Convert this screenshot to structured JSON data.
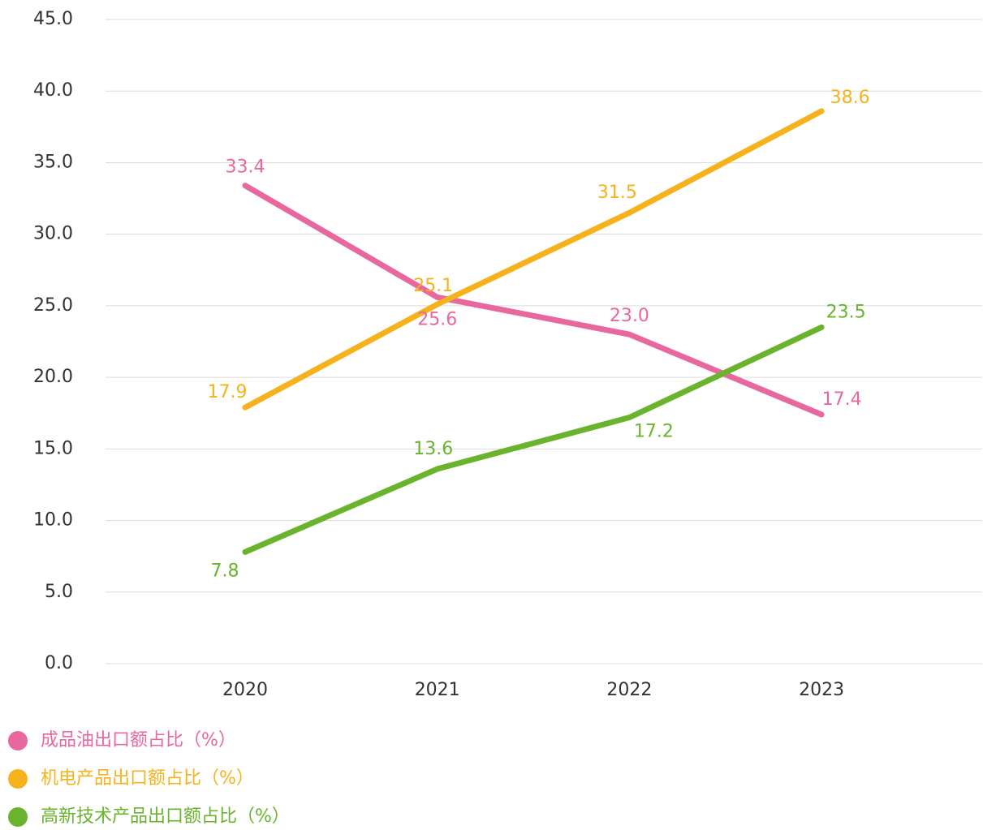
{
  "chart_data": {
    "type": "line",
    "categories": [
      "2020",
      "2021",
      "2022",
      "2023"
    ],
    "series": [
      {
        "name": "成品油出口额占比（%）",
        "color": "#e8679f",
        "values": [
          33.4,
          25.6,
          23.0,
          17.4
        ],
        "value_labels": [
          "33.4",
          "25.6",
          "23.0",
          "17.4"
        ]
      },
      {
        "name": "机电产品出口额占比（%）",
        "color": "#f5b21c",
        "values": [
          17.9,
          25.1,
          31.5,
          38.6
        ],
        "value_labels": [
          "17.9",
          "25.1",
          "31.5",
          "38.6"
        ]
      },
      {
        "name": "高新技术产品出口额占比（%）",
        "color": "#6ab42d",
        "values": [
          7.8,
          13.6,
          17.2,
          23.5
        ],
        "value_labels": [
          "7.8",
          "13.6",
          "17.2",
          "23.5"
        ]
      }
    ],
    "ylim": [
      0,
      45
    ],
    "yticks": [
      {
        "value": 0,
        "label": "0.0"
      },
      {
        "value": 5,
        "label": "5.0"
      },
      {
        "value": 10,
        "label": "10.0"
      },
      {
        "value": 15,
        "label": "15.0"
      },
      {
        "value": 20,
        "label": "20.0"
      },
      {
        "value": 25,
        "label": "25.0"
      },
      {
        "value": 30,
        "label": "30.0"
      },
      {
        "value": 35,
        "label": "35.0"
      },
      {
        "value": 40,
        "label": "40.0"
      },
      {
        "value": 45,
        "label": "45.0"
      }
    ],
    "grid": true,
    "legend": "bottom-left"
  }
}
